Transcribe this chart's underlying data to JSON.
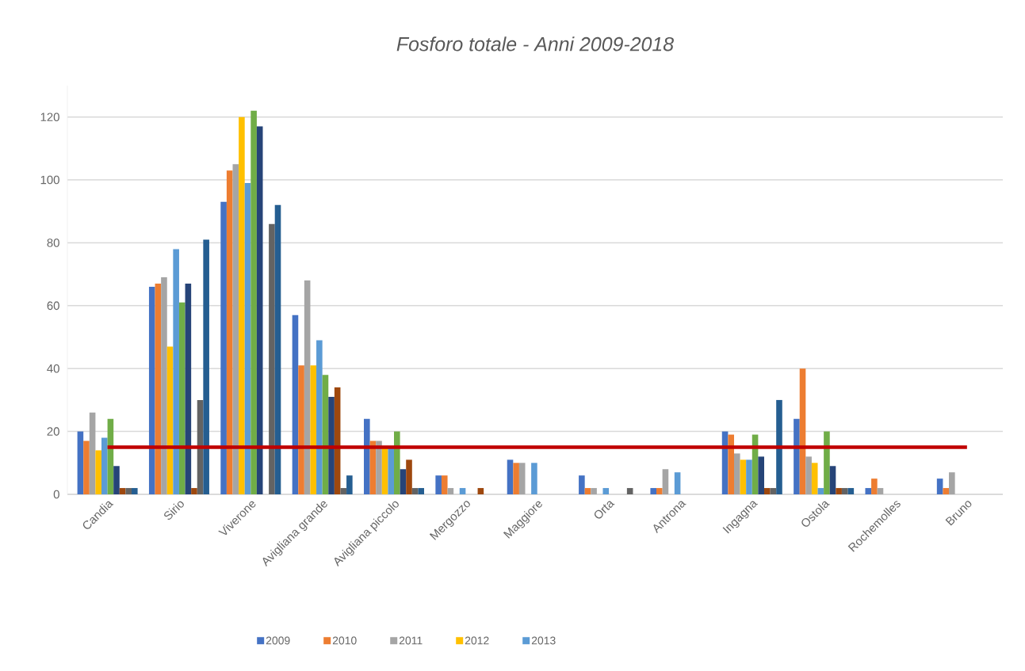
{
  "chart_data": {
    "type": "bar",
    "title": "Fosforo totale - Anni 2009-2018",
    "categories": [
      "Candia",
      "Sirio",
      "Viverone",
      "Avigliana grande",
      "Avigliana piccolo",
      "Mergozzo",
      "Maggiore",
      "Orta",
      "Antrona",
      "Ingagna",
      "Ostola",
      "Rochemolles",
      "Bruno"
    ],
    "series": [
      {
        "name": "2009",
        "color": "#4472c4",
        "values": [
          20,
          66,
          93,
          57,
          24,
          6,
          11,
          6,
          2,
          20,
          24,
          2,
          5
        ]
      },
      {
        "name": "2010",
        "color": "#ed7d31",
        "values": [
          17,
          67,
          103,
          41,
          17,
          6,
          10,
          2,
          2,
          19,
          40,
          5,
          2
        ]
      },
      {
        "name": "2011",
        "color": "#a5a5a5",
        "values": [
          26,
          69,
          105,
          68,
          17,
          2,
          10,
          2,
          8,
          13,
          12,
          2,
          7
        ]
      },
      {
        "name": "2012",
        "color": "#ffc000",
        "values": [
          14,
          47,
          120,
          41,
          15,
          null,
          null,
          null,
          null,
          11,
          10,
          null,
          null
        ]
      },
      {
        "name": "2013",
        "color": "#5b9bd5",
        "values": [
          18,
          78,
          99,
          49,
          15,
          2,
          10,
          2,
          7,
          11,
          2,
          null,
          null
        ]
      },
      {
        "color": "#70ad47",
        "values": [
          24,
          61,
          122,
          38,
          20,
          null,
          null,
          null,
          null,
          19,
          20,
          null,
          null
        ]
      },
      {
        "color": "#264478",
        "values": [
          9,
          67,
          117,
          31,
          8,
          null,
          null,
          null,
          null,
          12,
          9,
          null,
          null
        ]
      },
      {
        "color": "#9e480e",
        "values": [
          2,
          2,
          null,
          34,
          11,
          2,
          null,
          null,
          null,
          2,
          2,
          null,
          null
        ]
      },
      {
        "color": "#636363",
        "values": [
          2,
          30,
          86,
          2,
          2,
          null,
          null,
          2,
          null,
          2,
          2,
          null,
          null
        ]
      },
      {
        "color": "#255e91",
        "values": [
          2,
          81,
          92,
          6,
          2,
          null,
          null,
          null,
          null,
          30,
          2,
          null,
          null
        ]
      }
    ],
    "ylim": [
      0,
      130
    ],
    "yticks": [
      0,
      20,
      40,
      60,
      80,
      100,
      120
    ],
    "grid": "y",
    "legend": "bottom",
    "ref_lines": [
      {
        "axis": "y",
        "value": 15,
        "color": "#c00000"
      }
    ]
  }
}
